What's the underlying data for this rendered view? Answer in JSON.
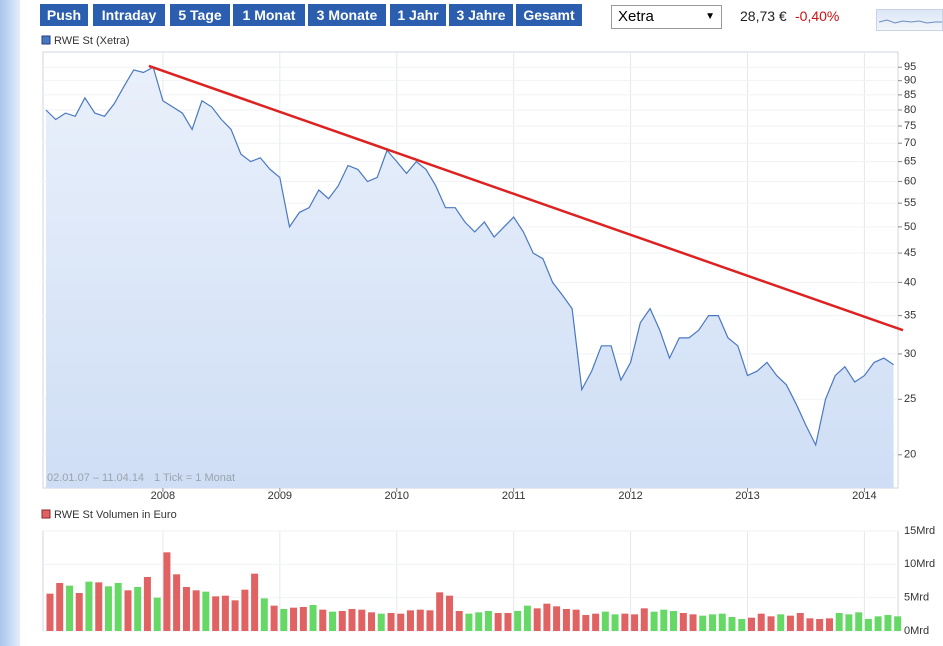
{
  "toolbar": {
    "buttons": [
      "Push",
      "Intraday",
      "5 Tage",
      "1 Monat",
      "3 Monate",
      "1 Jahr",
      "3 Jahre",
      "Gesamt"
    ]
  },
  "exchange": "Xetra",
  "quote": {
    "price": "28,73 €",
    "change": "-0,40%"
  },
  "chart_data": [
    {
      "type": "line",
      "range_label": "02.01.07 – 11.04.14",
      "tick_label": "1 Tick = 1 Monat",
      "log_scale": true,
      "grid": true,
      "x": [
        2007.0,
        2007.083,
        2007.167,
        2007.25,
        2007.333,
        2007.417,
        2007.5,
        2007.583,
        2007.667,
        2007.75,
        2007.833,
        2007.917,
        2008.0,
        2008.083,
        2008.167,
        2008.25,
        2008.333,
        2008.417,
        2008.5,
        2008.583,
        2008.667,
        2008.75,
        2008.833,
        2008.917,
        2009.0,
        2009.083,
        2009.167,
        2009.25,
        2009.333,
        2009.417,
        2009.5,
        2009.583,
        2009.667,
        2009.75,
        2009.833,
        2009.917,
        2010.0,
        2010.083,
        2010.167,
        2010.25,
        2010.333,
        2010.417,
        2010.5,
        2010.583,
        2010.667,
        2010.75,
        2010.833,
        2010.917,
        2011.0,
        2011.083,
        2011.167,
        2011.25,
        2011.333,
        2011.417,
        2011.5,
        2011.583,
        2011.667,
        2011.75,
        2011.833,
        2011.917,
        2012.0,
        2012.083,
        2012.167,
        2012.25,
        2012.333,
        2012.417,
        2012.5,
        2012.583,
        2012.667,
        2012.75,
        2012.833,
        2012.917,
        2013.0,
        2013.083,
        2013.167,
        2013.25,
        2013.333,
        2013.417,
        2013.5,
        2013.583,
        2013.667,
        2013.75,
        2013.833,
        2013.917,
        2014.0,
        2014.083,
        2014.167,
        2014.25
      ],
      "series": [
        {
          "name": "RWE St (Xetra)",
          "color": "#4a78c0",
          "values": [
            80,
            77,
            79,
            78,
            84,
            79,
            78,
            82,
            88,
            94,
            93,
            95,
            83,
            81,
            79,
            74,
            83,
            81,
            77,
            74,
            67,
            65,
            66,
            63,
            61,
            50,
            53,
            54,
            58,
            56,
            59,
            64,
            63,
            60,
            61,
            68,
            65,
            62,
            65,
            63,
            59,
            54,
            54,
            51,
            49,
            51,
            48,
            50,
            52,
            49,
            45,
            44,
            40,
            38,
            36,
            26,
            28,
            31,
            31,
            27,
            29,
            34,
            36,
            33,
            29.5,
            32,
            32,
            33,
            35,
            35,
            32,
            31,
            27.5,
            28,
            29,
            27.5,
            26.5,
            24.5,
            22.5,
            20.8,
            25,
            27.5,
            28.5,
            26.8,
            27.5,
            29,
            29.5,
            28.73
          ]
        }
      ],
      "trendline": {
        "color": "#dd2222",
        "x": [
          2007.88,
          2014.33
        ],
        "values": [
          95.5,
          33
        ]
      },
      "xlim": [
        2007.0,
        2014.33
      ],
      "xticks": [
        2008,
        2009,
        2010,
        2011,
        2012,
        2013,
        2014
      ],
      "ylim": [
        17.5,
        101
      ],
      "yticks": [
        20,
        25,
        30,
        35,
        40,
        45,
        50,
        55,
        60,
        65,
        70,
        75,
        80,
        85,
        90,
        95
      ]
    },
    {
      "type": "bar",
      "series": [
        {
          "name": "RWE St Volumen in Euro",
          "color": "#e06262",
          "values": [
            5.6,
            7.2,
            6.8,
            5.7,
            7.4,
            7.3,
            6.7,
            7.2,
            6.1,
            6.6,
            8.1,
            5.0,
            11.8,
            8.5,
            6.6,
            6.1,
            5.9,
            5.2,
            5.3,
            4.6,
            6.2,
            8.6,
            4.9,
            3.8,
            3.3,
            3.5,
            3.6,
            3.9,
            3.2,
            2.9,
            3.0,
            3.3,
            3.2,
            2.8,
            2.6,
            2.7,
            2.6,
            3.1,
            3.2,
            3.1,
            5.8,
            5.3,
            3.0,
            2.6,
            2.8,
            3.0,
            2.7,
            2.7,
            3.0,
            3.8,
            3.4,
            4.1,
            3.7,
            3.3,
            3.2,
            2.4,
            2.6,
            2.9,
            2.5,
            2.6,
            2.5,
            3.4,
            2.9,
            3.2,
            3.0,
            2.7,
            2.5,
            2.3,
            2.5,
            2.6,
            2.1,
            1.8,
            2.0,
            2.6,
            2.2,
            2.5,
            2.3,
            2.7,
            1.9,
            1.8,
            1.9,
            2.7,
            2.5,
            2.8,
            1.8,
            2.2,
            2.4,
            2.2
          ],
          "colors": [
            "#e06262",
            "#e06262",
            "#66d866",
            "#e06262",
            "#66d866",
            "#e06262",
            "#66d866",
            "#66d866",
            "#e06262",
            "#66d866",
            "#e06262",
            "#66d866",
            "#e06262",
            "#e06262",
            "#e06262",
            "#e06262",
            "#66d866",
            "#e06262",
            "#e06262",
            "#e06262",
            "#e06262",
            "#e06262",
            "#66d866",
            "#e06262",
            "#66d866",
            "#e06262",
            "#e06262",
            "#66d866",
            "#e06262",
            "#66d866",
            "#e06262",
            "#e06262",
            "#e06262",
            "#e06262",
            "#66d866",
            "#e06262",
            "#e06262",
            "#e06262",
            "#e06262",
            "#e06262",
            "#e06262",
            "#e06262",
            "#e06262",
            "#66d866",
            "#66d866",
            "#66d866",
            "#e06262",
            "#e06262",
            "#66d866",
            "#66d866",
            "#e06262",
            "#e06262",
            "#e06262",
            "#e06262",
            "#e06262",
            "#e06262",
            "#e06262",
            "#66d866",
            "#66d866",
            "#e06262",
            "#e06262",
            "#e06262",
            "#66d866",
            "#66d866",
            "#66d866",
            "#e06262",
            "#e06262",
            "#66d866",
            "#66d866",
            "#66d866",
            "#66d866",
            "#66d866",
            "#e06262",
            "#e06262",
            "#e06262",
            "#66d866",
            "#e06262",
            "#e06262",
            "#e06262",
            "#e06262",
            "#e06262",
            "#66d866",
            "#66d866",
            "#66d866",
            "#66d866",
            "#66d866",
            "#66d866",
            "#66d866"
          ]
        }
      ],
      "ylim": [
        0,
        15
      ],
      "yticks": [
        {
          "value": 0,
          "label": "0Mrd"
        },
        {
          "value": 5,
          "label": "5Mrd"
        },
        {
          "value": 10,
          "label": "10Mrd"
        },
        {
          "value": 15,
          "label": "15Mrd"
        }
      ]
    }
  ]
}
